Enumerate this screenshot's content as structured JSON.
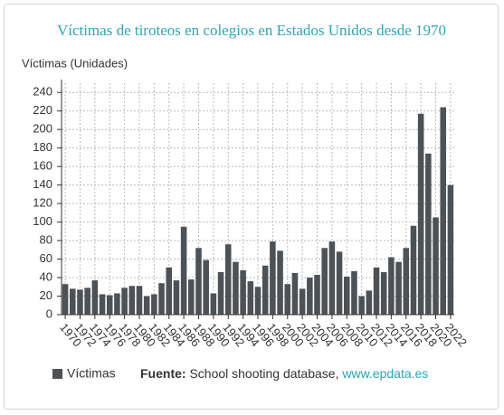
{
  "chart_data": {
    "type": "bar",
    "title": "Víctimas de tiroteos en colegios en Estados Unidos desde 1970",
    "y_label": "Víctimas (Unidades)",
    "categories": [
      "1970",
      null,
      "1972",
      null,
      "1974",
      null,
      "1976",
      null,
      "1978",
      null,
      "1980",
      null,
      "1982",
      null,
      "1984",
      null,
      "1986",
      null,
      "1988",
      null,
      "1990",
      null,
      "1992",
      null,
      "1994",
      null,
      "1996",
      null,
      "1998",
      null,
      "2000",
      null,
      "2002",
      null,
      "2004",
      null,
      "2006",
      null,
      "2008",
      null,
      "2010",
      null,
      "2012",
      null,
      "2014",
      null,
      "2016",
      null,
      "2018",
      null,
      "2020",
      null,
      "2022"
    ],
    "series": [
      {
        "name": "Víctimas",
        "color": "#4d5257",
        "values": [
          33,
          28,
          27,
          29,
          37,
          22,
          21,
          23,
          29,
          31,
          31,
          20,
          22,
          34,
          51,
          37,
          95,
          38,
          72,
          59,
          23,
          46,
          76,
          57,
          48,
          36,
          30,
          53,
          79,
          69,
          33,
          45,
          28,
          40,
          43,
          72,
          79,
          68,
          41,
          47,
          20,
          26,
          51,
          46,
          62,
          57,
          72,
          96,
          217,
          174,
          105,
          224,
          140
        ]
      }
    ],
    "ylim": [
      0,
      250
    ],
    "yticks": [
      0,
      20,
      40,
      60,
      80,
      100,
      120,
      140,
      160,
      180,
      200,
      220,
      240
    ],
    "grid": true,
    "source": {
      "label": "Fuente:",
      "text": "School shooting database,",
      "link": "www.epdata.es"
    }
  }
}
